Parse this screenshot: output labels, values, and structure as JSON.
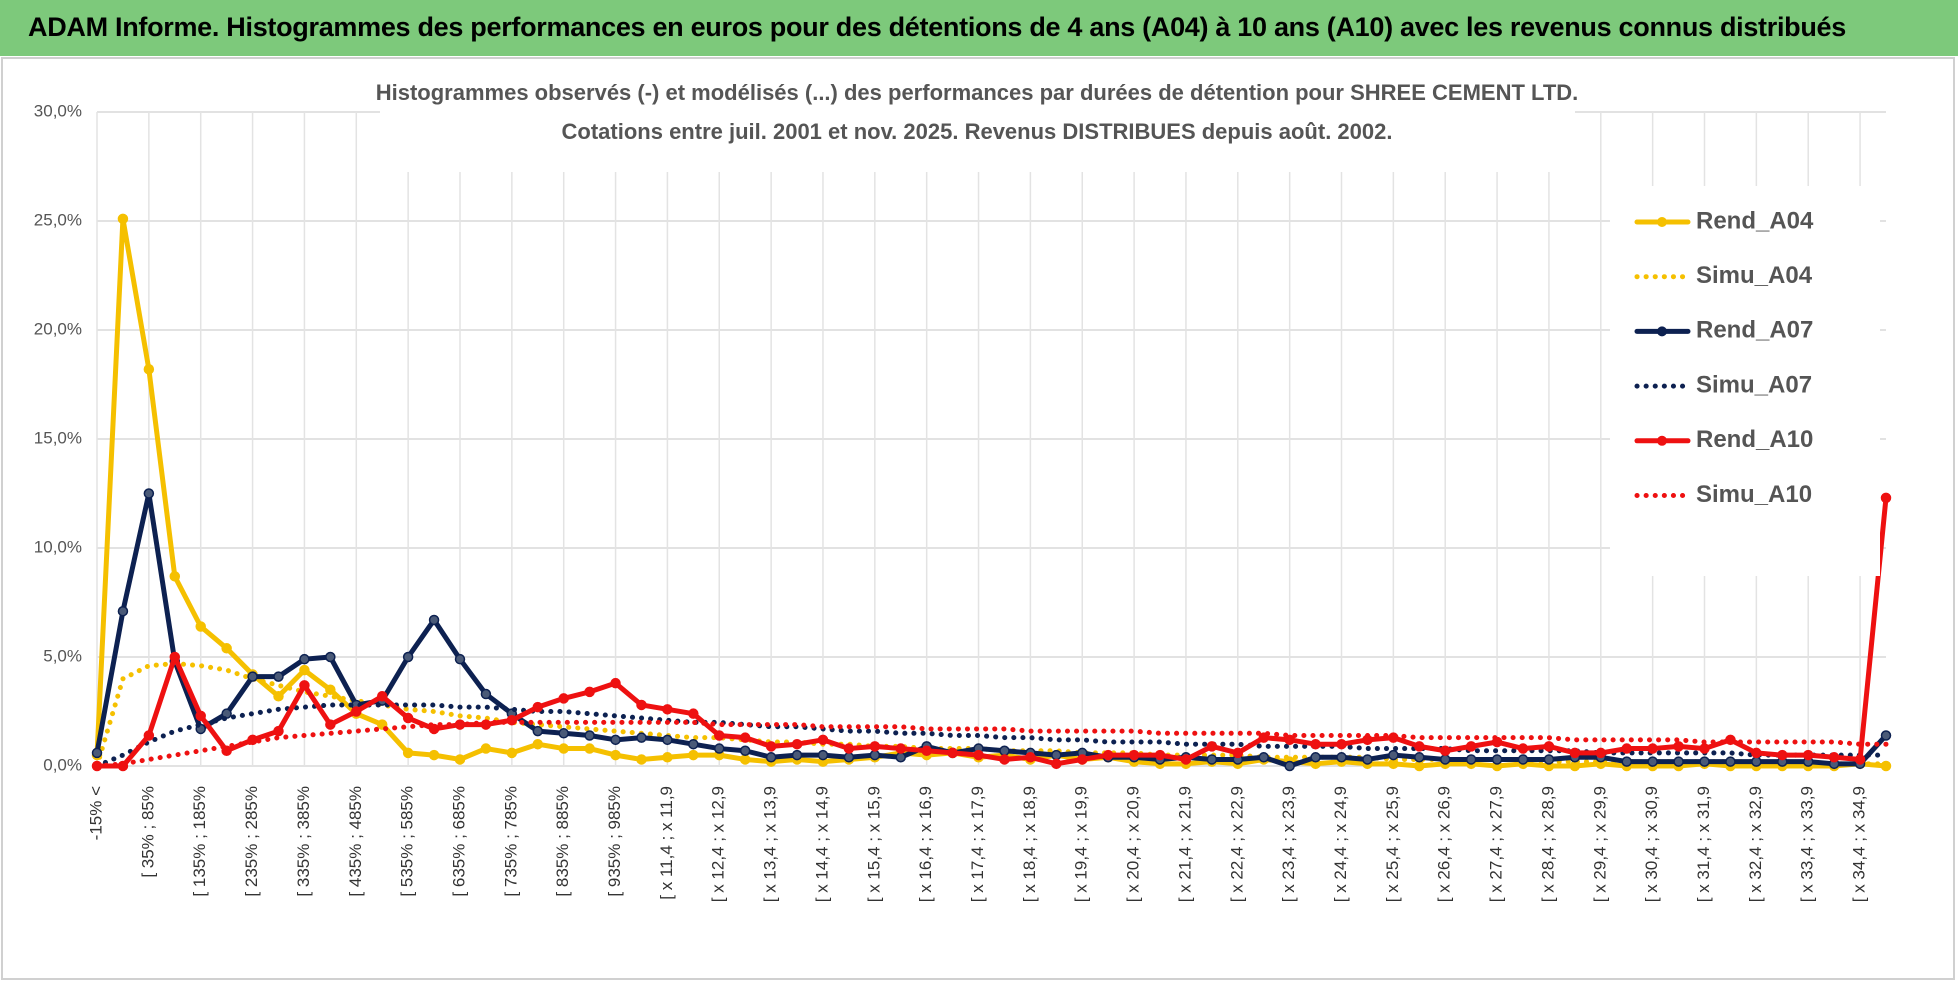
{
  "header": {
    "title": "ADAM Informe. Histogrammes des performances en euros pour des détentions de 4 ans (A04) à 10 ans (A10) avec les revenus connus distribués"
  },
  "chart_data": {
    "type": "line",
    "title": "Histogrammes observés (-) et modélisés (...) des performances par durées de détention pour SHREE CEMENT LTD.",
    "subtitle": "Cotations entre juil. 2001 et nov. 2025. Revenus DISTRIBUES depuis août. 2002.",
    "categories": [
      "-15% <",
      null,
      "[ 35% ; 85%",
      null,
      "[ 135% ; 185%",
      null,
      "[ 235% ; 285%",
      null,
      "[ 335% ; 385%",
      null,
      "[ 435% ; 485%",
      null,
      "[ 535% ; 585%",
      null,
      "[ 635% ; 685%",
      null,
      "[ 735% ; 785%",
      null,
      "[ 835% ; 885%",
      null,
      "[ 935% ; 985%",
      null,
      "[ x 11,4 ; x 11,9",
      null,
      "[ x 12,4 ; x 12,9",
      null,
      "[ x 13,4 ; x 13,9",
      null,
      "[ x 14,4 ; x 14,9",
      null,
      "[ x 15,4 ; x 15,9",
      null,
      "[ x 16,4 ; x 16,9",
      null,
      "[ x 17,4 ; x 17,9",
      null,
      "[ x 18,4 ; x 18,9",
      null,
      "[ x 19,4 ; x 19,9",
      null,
      "[ x 20,4 ; x 20,9",
      null,
      "[ x 21,4 ; x 21,9",
      null,
      "[ x 22,4 ; x 22,9",
      null,
      "[ x 23,4 ; x 23,9",
      null,
      "[ x 24,4 ; x 24,9",
      null,
      "[ x 25,4 ; x 25,9",
      null,
      "[ x 26,4 ; x 26,9",
      null,
      "[ x 27,4 ; x 27,9",
      null,
      "[ x 28,4 ; x 28,9",
      null,
      "[ x 29,4 ; x 29,9",
      null,
      "[ x 30,4 ; x 30,9",
      null,
      "[ x 31,4 ; x 31,9",
      null,
      "[ x 32,4 ; x 32,9",
      null,
      "[ x 33,4 ; x 33,9",
      null,
      "[ x 34,4 ; x 34,9",
      null
    ],
    "series": [
      {
        "name": "Rend_A04",
        "color": "#f5c000",
        "style": "solid",
        "values": [
          0.5,
          25.1,
          18.2,
          8.7,
          6.4,
          5.4,
          4.2,
          3.2,
          4.4,
          3.5,
          2.4,
          1.9,
          0.6,
          0.5,
          0.3,
          0.8,
          0.6,
          1.0,
          0.8,
          0.8,
          0.5,
          0.3,
          0.4,
          0.5,
          0.5,
          0.3,
          0.2,
          0.3,
          0.2,
          0.3,
          0.4,
          0.6,
          0.5,
          0.6,
          0.4,
          0.5,
          0.3,
          0.5,
          0.3,
          0.4,
          0.2,
          0.1,
          0.1,
          0.2,
          0.1,
          0.3,
          0.2,
          0.1,
          0.2,
          0.1,
          0.1,
          0.0,
          0.1,
          0.1,
          0.0,
          0.1,
          0.0,
          0.0,
          0.1,
          0.0,
          0.0,
          0.0,
          0.1,
          0.0,
          0.0,
          0.0,
          0.0,
          0.0,
          0.1,
          0.0
        ]
      },
      {
        "name": "Simu_A04",
        "color": "#f5c000",
        "style": "dotted",
        "values": [
          0.0,
          4.0,
          4.6,
          4.7,
          4.6,
          4.4,
          4.0,
          3.7,
          3.4,
          3.2,
          3.0,
          2.8,
          2.6,
          2.5,
          2.3,
          2.2,
          2.0,
          1.9,
          1.8,
          1.7,
          1.6,
          1.5,
          1.4,
          1.3,
          1.3,
          1.2,
          1.1,
          1.1,
          1.0,
          1.0,
          0.9,
          0.9,
          0.8,
          0.8,
          0.8,
          0.7,
          0.7,
          0.7,
          0.6,
          0.6,
          0.6,
          0.5,
          0.5,
          0.5,
          0.5,
          0.4,
          0.4,
          0.4,
          0.4,
          0.4,
          0.3,
          0.3,
          0.3,
          0.3,
          0.3,
          0.3,
          0.2,
          0.2,
          0.2,
          0.2,
          0.2,
          0.2,
          0.2,
          0.2,
          0.2,
          0.1,
          0.1,
          0.1,
          0.1,
          0.1
        ]
      },
      {
        "name": "Rend_A07",
        "color": "#0d2151",
        "style": "solid",
        "values": [
          0.6,
          7.1,
          12.5,
          4.8,
          1.7,
          2.4,
          4.1,
          4.1,
          4.9,
          5.0,
          2.8,
          3.0,
          5.0,
          6.7,
          4.9,
          3.3,
          2.4,
          1.6,
          1.5,
          1.4,
          1.2,
          1.3,
          1.2,
          1.0,
          0.8,
          0.7,
          0.4,
          0.5,
          0.5,
          0.4,
          0.5,
          0.4,
          0.9,
          0.6,
          0.8,
          0.7,
          0.6,
          0.5,
          0.6,
          0.4,
          0.4,
          0.3,
          0.4,
          0.3,
          0.3,
          0.4,
          0.0,
          0.4,
          0.4,
          0.3,
          0.5,
          0.4,
          0.3,
          0.3,
          0.3,
          0.3,
          0.3,
          0.4,
          0.4,
          0.2,
          0.2,
          0.2,
          0.2,
          0.2,
          0.2,
          0.2,
          0.2,
          0.1,
          0.1,
          1.4
        ]
      },
      {
        "name": "Simu_A07",
        "color": "#0d2151",
        "style": "dotted",
        "values": [
          0.0,
          0.5,
          1.1,
          1.6,
          1.9,
          2.2,
          2.4,
          2.6,
          2.7,
          2.8,
          2.8,
          2.8,
          2.8,
          2.8,
          2.7,
          2.7,
          2.6,
          2.5,
          2.5,
          2.4,
          2.3,
          2.2,
          2.1,
          2.0,
          2.0,
          1.9,
          1.8,
          1.8,
          1.7,
          1.6,
          1.6,
          1.5,
          1.5,
          1.4,
          1.4,
          1.3,
          1.3,
          1.2,
          1.2,
          1.1,
          1.1,
          1.1,
          1.0,
          1.0,
          1.0,
          0.9,
          0.9,
          0.9,
          0.9,
          0.8,
          0.8,
          0.8,
          0.8,
          0.7,
          0.7,
          0.7,
          0.7,
          0.7,
          0.6,
          0.6,
          0.6,
          0.6,
          0.6,
          0.6,
          0.5,
          0.5,
          0.5,
          0.5,
          0.5,
          0.5
        ]
      },
      {
        "name": "Rend_A10",
        "color": "#ee1111",
        "style": "solid",
        "values": [
          0.0,
          0.0,
          1.4,
          5.0,
          2.3,
          0.7,
          1.2,
          1.6,
          3.7,
          1.9,
          2.5,
          3.2,
          2.2,
          1.7,
          1.9,
          1.9,
          2.1,
          2.7,
          3.1,
          3.4,
          3.8,
          2.8,
          2.6,
          2.4,
          1.4,
          1.3,
          0.9,
          1.0,
          1.2,
          0.8,
          0.9,
          0.8,
          0.7,
          0.6,
          0.5,
          0.3,
          0.4,
          0.1,
          0.3,
          0.5,
          0.5,
          0.5,
          0.3,
          0.9,
          0.6,
          1.3,
          1.2,
          1.0,
          1.0,
          1.2,
          1.3,
          0.9,
          0.7,
          0.9,
          1.1,
          0.8,
          0.9,
          0.6,
          0.6,
          0.8,
          0.8,
          0.9,
          0.8,
          1.2,
          0.6,
          0.5,
          0.5,
          0.4,
          0.3,
          12.3
        ]
      },
      {
        "name": "Simu_A10",
        "color": "#ee1111",
        "style": "dotted",
        "values": [
          0.0,
          0.1,
          0.3,
          0.5,
          0.7,
          0.9,
          1.1,
          1.3,
          1.4,
          1.5,
          1.6,
          1.7,
          1.8,
          1.9,
          1.9,
          2.0,
          2.0,
          2.0,
          2.0,
          2.0,
          2.0,
          2.0,
          2.0,
          2.0,
          1.9,
          1.9,
          1.9,
          1.9,
          1.8,
          1.8,
          1.8,
          1.8,
          1.7,
          1.7,
          1.7,
          1.7,
          1.6,
          1.6,
          1.6,
          1.6,
          1.6,
          1.5,
          1.5,
          1.5,
          1.5,
          1.5,
          1.4,
          1.4,
          1.4,
          1.4,
          1.4,
          1.3,
          1.3,
          1.3,
          1.3,
          1.3,
          1.3,
          1.2,
          1.2,
          1.2,
          1.2,
          1.2,
          1.1,
          1.1,
          1.1,
          1.1,
          1.1,
          1.1,
          1.0,
          1.0
        ]
      }
    ],
    "ylim": [
      0,
      30
    ],
    "yticks": [
      {
        "value": 0,
        "label": "0,0%"
      },
      {
        "value": 5,
        "label": "5,0%"
      },
      {
        "value": 10,
        "label": "10,0%"
      },
      {
        "value": 15,
        "label": "15,0%"
      },
      {
        "value": 20,
        "label": "20,0%"
      },
      {
        "value": 25,
        "label": "25,0%"
      },
      {
        "value": 30,
        "label": "30,0%"
      }
    ],
    "grid": true,
    "legend": "right"
  }
}
